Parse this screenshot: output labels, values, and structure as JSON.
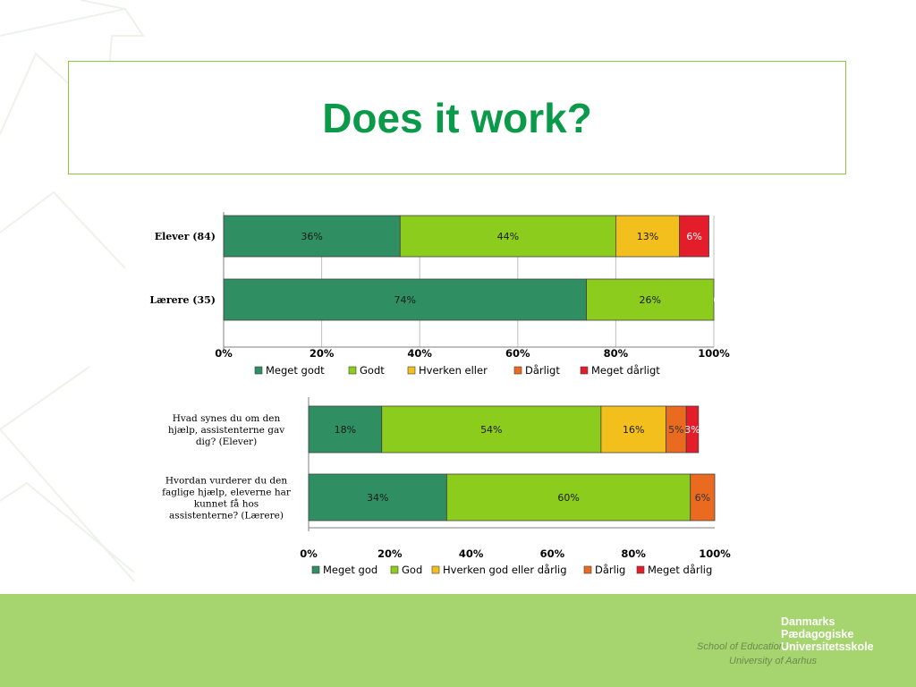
{
  "slide": {
    "title": "Does it work?"
  },
  "footer": {
    "school_label": "School of Education",
    "university_label": "University of Aarhus",
    "institution_lines": [
      "Danmarks",
      "Pædagogiske",
      "Universitetsskole"
    ]
  },
  "chart_data": [
    {
      "type": "bar",
      "orientation": "horizontal",
      "stacked": true,
      "categories": [
        "Elever (84)",
        "Lærere (35)"
      ],
      "series": [
        {
          "name": "Meget godt",
          "color": "#2f8f62",
          "values": [
            36,
            74
          ],
          "labels": [
            "36%",
            "74%"
          ]
        },
        {
          "name": "Godt",
          "color": "#8ccc1c",
          "values": [
            44,
            26
          ],
          "labels": [
            "44%",
            "26%"
          ]
        },
        {
          "name": "Hverken eller",
          "color": "#f2bf1d",
          "values": [
            13,
            0
          ],
          "labels": [
            "13%",
            ""
          ]
        },
        {
          "name": "Dårligt",
          "color": "#ea6a1f",
          "values": [
            0,
            0
          ],
          "labels": [
            "",
            ""
          ]
        },
        {
          "name": "Meget dårligt",
          "color": "#e41d2b",
          "values": [
            6,
            0
          ],
          "labels": [
            "6%",
            "0%"
          ]
        }
      ],
      "xlim": [
        0,
        100
      ],
      "ticks": [
        "0%",
        "20%",
        "40%",
        "60%",
        "80%",
        "100%"
      ],
      "grid": true,
      "legend": "bottom"
    },
    {
      "type": "bar",
      "orientation": "horizontal",
      "stacked": true,
      "categories": [
        "Hvad synes du om den hjælp, assistenterne gav dig? (Elever)",
        "Hvordan vurderer du den faglige hjælp, eleverne har kunnet få hos assistenterne? (Lærere)"
      ],
      "category_lines": [
        [
          "Hvad synes du om den",
          "hjælp, assistenterne gav",
          "dig? (Elever)"
        ],
        [
          "Hvordan vurderer du den",
          "faglige hjælp, eleverne har",
          "kunnet få hos",
          "assistenterne? (Lærere)"
        ]
      ],
      "series": [
        {
          "name": "Meget god",
          "color": "#2f8f62",
          "values": [
            18,
            34
          ],
          "labels": [
            "18%",
            "34%"
          ]
        },
        {
          "name": "God",
          "color": "#8ccc1c",
          "values": [
            54,
            60
          ],
          "labels": [
            "54%",
            "60%"
          ]
        },
        {
          "name": "Hverken god eller dårlig",
          "color": "#f2bf1d",
          "values": [
            16,
            0
          ],
          "labels": [
            "16%",
            ""
          ]
        },
        {
          "name": "Dårlig",
          "color": "#ea6a1f",
          "values": [
            5,
            6
          ],
          "labels": [
            "5%",
            "6%"
          ]
        },
        {
          "name": "Meget dårlig",
          "color": "#e41d2b",
          "values": [
            3,
            0
          ],
          "labels": [
            "3%",
            ""
          ]
        }
      ],
      "xlim": [
        0,
        100
      ],
      "ticks": [
        "0%",
        "20%",
        "40%",
        "60%",
        "80%",
        "100%"
      ],
      "grid": false,
      "legend": "bottom"
    }
  ]
}
